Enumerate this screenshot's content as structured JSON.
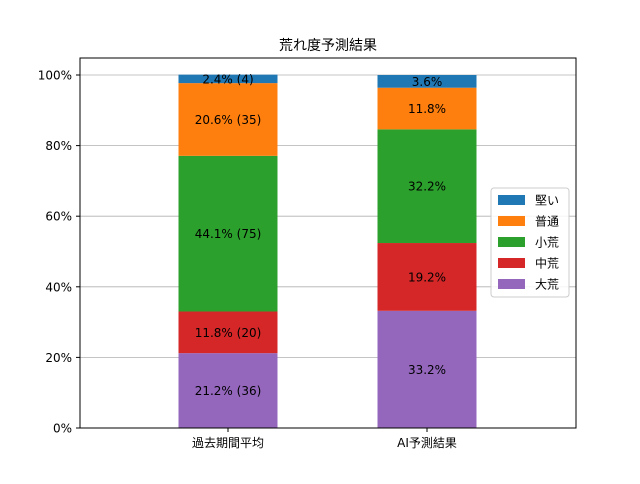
{
  "chart_data": {
    "type": "bar",
    "stacked": true,
    "title": "荒れ度予測結果",
    "xlabel": "",
    "ylabel": "",
    "categories": [
      "過去期間平均",
      "AI予測結果"
    ],
    "ylim": [
      0,
      100
    ],
    "yticks": [
      0,
      20,
      40,
      60,
      80,
      100
    ],
    "ytick_labels": [
      "0%",
      "20%",
      "40%",
      "60%",
      "80%",
      "100%"
    ],
    "grid": "y",
    "legend_position": "right",
    "series": [
      {
        "name": "大荒",
        "color": "#9467bd",
        "values": [
          21.2,
          33.2
        ],
        "labels": [
          "21.2% (36)",
          "33.2%"
        ]
      },
      {
        "name": "中荒",
        "color": "#d62728",
        "values": [
          11.8,
          19.2
        ],
        "labels": [
          "11.8% (20)",
          "19.2%"
        ]
      },
      {
        "name": "小荒",
        "color": "#2ca02c",
        "values": [
          44.1,
          32.2
        ],
        "labels": [
          "44.1% (75)",
          "32.2%"
        ]
      },
      {
        "name": "普通",
        "color": "#ff7f0e",
        "values": [
          20.6,
          11.8
        ],
        "labels": [
          "20.6% (35)",
          "11.8%"
        ]
      },
      {
        "name": "堅い",
        "color": "#1f77b4",
        "values": [
          2.4,
          3.6
        ],
        "labels": [
          "2.4% (4)",
          "3.6%"
        ]
      }
    ],
    "legend_order": [
      "堅い",
      "普通",
      "小荒",
      "中荒",
      "大荒"
    ]
  }
}
